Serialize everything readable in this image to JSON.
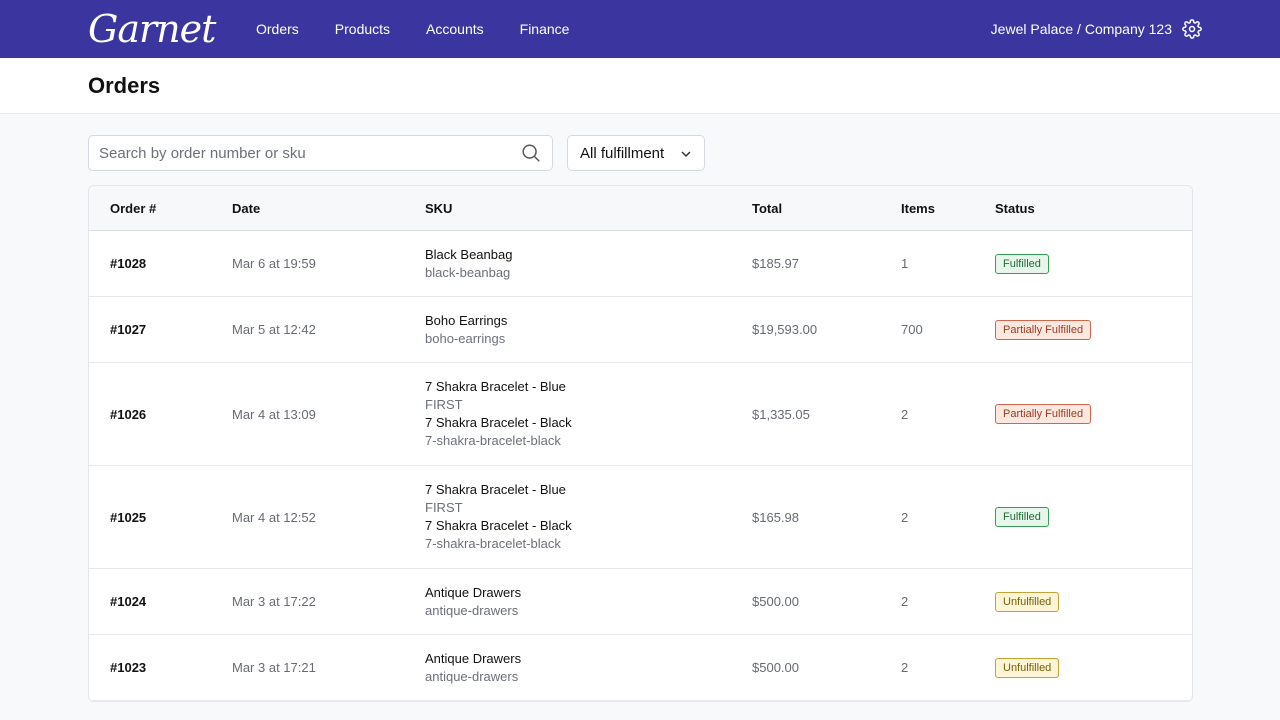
{
  "app": {
    "logo": "Garnet"
  },
  "nav": {
    "items": [
      "Orders",
      "Products",
      "Accounts",
      "Finance"
    ]
  },
  "account": {
    "label": "Jewel Palace / Company 123"
  },
  "page": {
    "title": "Orders"
  },
  "search": {
    "placeholder": "Search by order number or sku",
    "value": ""
  },
  "filter": {
    "selected": "All fulfillment"
  },
  "table": {
    "headers": [
      "Order #",
      "Date",
      "SKU",
      "Total",
      "Items",
      "Status"
    ],
    "rows": [
      {
        "order": "#1028",
        "date": "Mar 6 at 19:59",
        "skus": [
          [
            "Black Beanbag",
            "black-beanbag"
          ]
        ],
        "total": "$185.97",
        "items": "1",
        "status": "Fulfilled",
        "status_type": "fulfilled"
      },
      {
        "order": "#1027",
        "date": "Mar 5 at 12:42",
        "skus": [
          [
            "Boho Earrings",
            "boho-earrings"
          ]
        ],
        "total": "$19,593.00",
        "items": "700",
        "status": "Partially Fulfilled",
        "status_type": "partial"
      },
      {
        "order": "#1026",
        "date": "Mar 4 at 13:09",
        "skus": [
          [
            "7 Shakra Bracelet - Blue",
            "FIRST"
          ],
          [
            "7 Shakra Bracelet - Black",
            "7-shakra-bracelet-black"
          ]
        ],
        "total": "$1,335.05",
        "items": "2",
        "status": "Partially Fulfilled",
        "status_type": "partial"
      },
      {
        "order": "#1025",
        "date": "Mar 4 at 12:52",
        "skus": [
          [
            "7 Shakra Bracelet - Blue",
            "FIRST"
          ],
          [
            "7 Shakra Bracelet - Black",
            "7-shakra-bracelet-black"
          ]
        ],
        "total": "$165.98",
        "items": "2",
        "status": "Fulfilled",
        "status_type": "fulfilled"
      },
      {
        "order": "#1024",
        "date": "Mar 3 at 17:22",
        "skus": [
          [
            "Antique Drawers",
            "antique-drawers"
          ]
        ],
        "total": "$500.00",
        "items": "2",
        "status": "Unfulfilled",
        "status_type": "unfulfilled"
      },
      {
        "order": "#1023",
        "date": "Mar 3 at 17:21",
        "skus": [
          [
            "Antique Drawers",
            "antique-drawers"
          ]
        ],
        "total": "$500.00",
        "items": "2",
        "status": "Unfulfilled",
        "status_type": "unfulfilled"
      }
    ]
  },
  "colors": {
    "topbar": "#3b35a0",
    "fulfilled": "#3a9b58",
    "partial": "#d0664b",
    "unfulfilled": "#c6a13a"
  },
  "icons": {
    "settings": "gear-icon",
    "search": "search-icon",
    "dropdown": "chevron-down-icon"
  }
}
